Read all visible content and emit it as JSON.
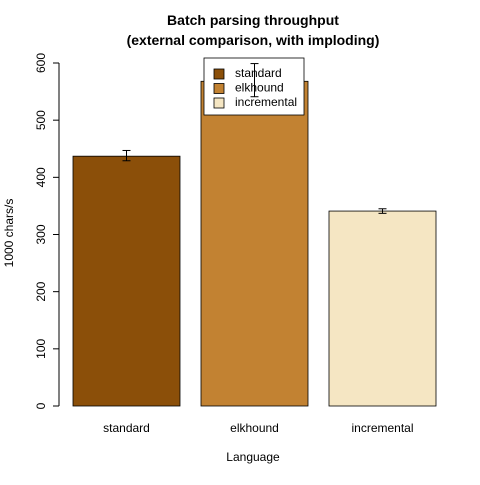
{
  "chart_data": {
    "type": "bar",
    "title_line1": "Batch parsing throughput",
    "title_line2": "(external comparison, with imploding)",
    "xlabel": "Language",
    "ylabel": "1000 chars/s",
    "categories": [
      "standard",
      "elkhound",
      "incremental"
    ],
    "values": [
      437,
      568,
      341
    ],
    "error_low": [
      429,
      541,
      337
    ],
    "error_high": [
      447,
      599,
      345
    ],
    "colors": [
      "#8B4F09",
      "#C28232",
      "#F5E6C3"
    ],
    "ylim": [
      0,
      600
    ],
    "yticks": [
      "0",
      "100",
      "200",
      "300",
      "400",
      "500",
      "600"
    ],
    "grid": false,
    "legend_position": "top-center",
    "legend": [
      {
        "label": "standard",
        "color": "#8B4F09"
      },
      {
        "label": "elkhound",
        "color": "#C28232"
      },
      {
        "label": "incremental",
        "color": "#F5E6C3"
      }
    ]
  }
}
